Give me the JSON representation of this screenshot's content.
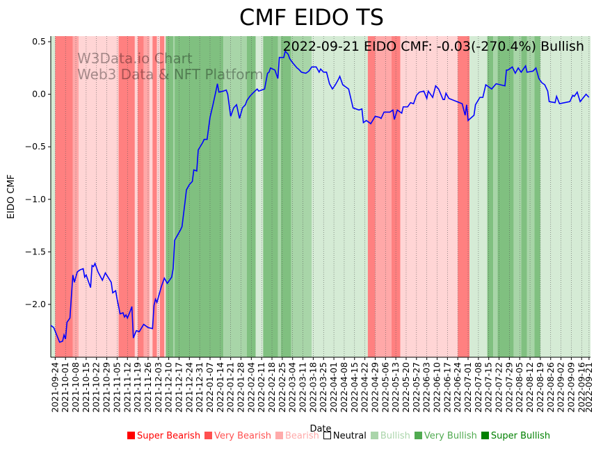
{
  "chart_data": {
    "type": "line",
    "title": "CMF EIDO TS",
    "annotation": "2022-09-21 EIDO CMF: -0.03(-270.4%) Bullish",
    "watermark": [
      "W3Data.io Chart",
      "Web3 Data & NFT Platform"
    ],
    "xlabel": "Date",
    "ylabel": "EIDO CMF",
    "start_date": "2021-09-24",
    "xlim_days": [
      -3,
      363
    ],
    "ylim": [
      -2.503,
      0.553
    ],
    "yticks": [
      0.5,
      0.0,
      -0.5,
      -1.0,
      -1.5,
      -2.0
    ],
    "ytick_labels": [
      "0.5",
      "0.0",
      "−0.5",
      "−1.0",
      "−1.5",
      "−2.0"
    ],
    "xtick_labels": [
      "2021-09-24",
      "2021-10-01",
      "2021-10-08",
      "2021-10-15",
      "2021-10-22",
      "2021-10-29",
      "2021-11-05",
      "2021-11-12",
      "2021-11-19",
      "2021-11-26",
      "2021-12-03",
      "2021-12-10",
      "2021-12-17",
      "2021-12-24",
      "2021-12-31",
      "2022-01-07",
      "2022-01-14",
      "2022-01-21",
      "2022-01-28",
      "2022-02-04",
      "2022-02-11",
      "2022-02-18",
      "2022-02-25",
      "2022-03-04",
      "2022-03-11",
      "2022-03-18",
      "2022-03-25",
      "2022-04-01",
      "2022-04-08",
      "2022-04-15",
      "2022-04-22",
      "2022-04-29",
      "2022-05-06",
      "2022-05-13",
      "2022-05-20",
      "2022-05-27",
      "2022-06-03",
      "2022-06-10",
      "2022-06-17",
      "2022-06-24",
      "2022-07-01",
      "2022-07-08",
      "2022-07-15",
      "2022-07-22",
      "2022-07-29",
      "2022-08-05",
      "2022-08-12",
      "2022-08-19",
      "2022-08-26",
      "2022-09-02",
      "2022-09-09",
      "2022-09-16",
      "2022-09-21"
    ],
    "xtick_days_note": "weekly from day 0, last tick at day 362",
    "series": [
      {
        "name": "EIDO CMF",
        "color": "#0000ff",
        "x_days": [
          -3,
          -1,
          3,
          5,
          6,
          7,
          8,
          10,
          11,
          12,
          13,
          15,
          17,
          19,
          20,
          21,
          24,
          25,
          26,
          27,
          29,
          32,
          34,
          38,
          39,
          41,
          42,
          44,
          46,
          47,
          48,
          49,
          51,
          52,
          53,
          55,
          57,
          60,
          63,
          66,
          67,
          68,
          69,
          72,
          74,
          76,
          79,
          80,
          81,
          83,
          85,
          86,
          88,
          89,
          91,
          93,
          94,
          96,
          97,
          100,
          101,
          103,
          105,
          107,
          109,
          110,
          111,
          114,
          116,
          117,
          119,
          121,
          123,
          125,
          127,
          129,
          130,
          132,
          134,
          137,
          138,
          142,
          144,
          145,
          146,
          149,
          151,
          152,
          155,
          156,
          158,
          159,
          161,
          164,
          165,
          167,
          170,
          172,
          174,
          177,
          179,
          180,
          182,
          184,
          186,
          188,
          190,
          192,
          193,
          195,
          197,
          199,
          202,
          206,
          208,
          209,
          211,
          214,
          217,
          220,
          221,
          223,
          227,
          229,
          230,
          232,
          235,
          236,
          239,
          241,
          243,
          245,
          247,
          250,
          252,
          253,
          256,
          258,
          260,
          263,
          264,
          265,
          267,
          276,
          278,
          279,
          280,
          284,
          285,
          288,
          290,
          292,
          296,
          299,
          302,
          305,
          306,
          307,
          310,
          312,
          314,
          316,
          319,
          320,
          324,
          326,
          328,
          330,
          332,
          334,
          335,
          339,
          340,
          342,
          349,
          351,
          352,
          354,
          356,
          360,
          362
        ],
        "values": [
          -2.2,
          -2.22,
          -2.36,
          -2.35,
          -2.29,
          -2.33,
          -2.17,
          -2.13,
          -1.92,
          -1.72,
          -1.79,
          -1.69,
          -1.67,
          -1.66,
          -1.74,
          -1.72,
          -1.84,
          -1.63,
          -1.64,
          -1.61,
          -1.69,
          -1.77,
          -1.7,
          -1.79,
          -1.89,
          -1.87,
          -1.95,
          -2.09,
          -2.08,
          -2.12,
          -2.1,
          -2.13,
          -2.06,
          -2.02,
          -2.32,
          -2.25,
          -2.26,
          -2.19,
          -2.22,
          -2.23,
          -2.01,
          -1.95,
          -1.98,
          -1.83,
          -1.75,
          -1.8,
          -1.74,
          -1.66,
          -1.39,
          -1.34,
          -1.29,
          -1.26,
          -1.03,
          -0.91,
          -0.86,
          -0.83,
          -0.72,
          -0.73,
          -0.53,
          -0.46,
          -0.43,
          -0.43,
          -0.22,
          -0.1,
          0.03,
          0.1,
          0.02,
          0.03,
          0.04,
          0.0,
          -0.21,
          -0.13,
          -0.1,
          -0.23,
          -0.13,
          -0.1,
          -0.06,
          -0.02,
          0.01,
          0.05,
          0.03,
          0.05,
          0.2,
          0.21,
          0.25,
          0.23,
          0.15,
          0.35,
          0.35,
          0.41,
          0.38,
          0.34,
          0.3,
          0.25,
          0.24,
          0.21,
          0.2,
          0.22,
          0.26,
          0.26,
          0.21,
          0.24,
          0.21,
          0.21,
          0.1,
          0.05,
          0.09,
          0.14,
          0.17,
          0.09,
          0.07,
          0.05,
          -0.13,
          -0.15,
          -0.14,
          -0.27,
          -0.25,
          -0.28,
          -0.21,
          -0.22,
          -0.23,
          -0.17,
          -0.17,
          -0.15,
          -0.24,
          -0.15,
          -0.18,
          -0.12,
          -0.12,
          -0.08,
          -0.09,
          -0.01,
          0.02,
          0.03,
          -0.04,
          0.03,
          -0.03,
          0.08,
          0.05,
          -0.05,
          -0.05,
          0.01,
          -0.04,
          -0.09,
          -0.2,
          -0.1,
          -0.25,
          -0.2,
          -0.1,
          -0.03,
          -0.03,
          0.09,
          0.05,
          0.1,
          0.09,
          0.08,
          0.23,
          0.23,
          0.26,
          0.2,
          0.25,
          0.21,
          0.27,
          0.21,
          0.22,
          0.25,
          0.15,
          0.11,
          0.09,
          0.03,
          -0.07,
          -0.08,
          -0.02,
          -0.09,
          -0.07,
          -0.01,
          -0.02,
          0.02,
          -0.07,
          0.0,
          -0.03
        ]
      }
    ],
    "bands": [
      [
        -3,
        0,
        "bullish"
      ],
      [
        0,
        12,
        "super_bearish"
      ],
      [
        12,
        16,
        "very_bearish"
      ],
      [
        16,
        43,
        "bearish"
      ],
      [
        43,
        54,
        "super_bearish"
      ],
      [
        54,
        56,
        "bearish"
      ],
      [
        56,
        60,
        "super_bearish"
      ],
      [
        60,
        64,
        "very_bearish"
      ],
      [
        64,
        66,
        "bearish"
      ],
      [
        66,
        69,
        "super_bearish"
      ],
      [
        69,
        71,
        "bearish"
      ],
      [
        71,
        74,
        "super_bearish"
      ],
      [
        74,
        75,
        "bearish"
      ],
      [
        75,
        80,
        "super_bullish"
      ],
      [
        80,
        81,
        "very_bullish"
      ],
      [
        81,
        114,
        "super_bullish"
      ],
      [
        114,
        130,
        "very_bullish"
      ],
      [
        130,
        136,
        "super_bullish"
      ],
      [
        136,
        141,
        "bullish"
      ],
      [
        141,
        151,
        "super_bullish"
      ],
      [
        151,
        153,
        "very_bullish"
      ],
      [
        153,
        160,
        "super_bullish"
      ],
      [
        160,
        174,
        "very_bullish"
      ],
      [
        174,
        212,
        "bullish"
      ],
      [
        212,
        217,
        "super_bearish"
      ],
      [
        217,
        228,
        "very_bearish"
      ],
      [
        228,
        234,
        "super_bearish"
      ],
      [
        234,
        273,
        "bearish"
      ],
      [
        273,
        281,
        "super_bearish"
      ],
      [
        281,
        293,
        "bullish"
      ],
      [
        293,
        297,
        "super_bullish"
      ],
      [
        297,
        300,
        "very_bullish"
      ],
      [
        300,
        311,
        "super_bullish"
      ],
      [
        311,
        316,
        "very_bullish"
      ],
      [
        316,
        320,
        "super_bullish"
      ],
      [
        320,
        325,
        "very_bullish"
      ],
      [
        325,
        329,
        "super_bullish"
      ],
      [
        329,
        363,
        "bullish"
      ]
    ],
    "band_colors": {
      "super_bearish": "#ff8080",
      "very_bearish": "#ffa8a8",
      "bearish": "#ffd5d5",
      "bullish": "#d5ebd5",
      "very_bullish": "#a8d5a8",
      "super_bullish": "#80c080"
    },
    "legend": [
      {
        "label": "Super Bearish",
        "color": "#ff0000",
        "text_color": "#ff0000"
      },
      {
        "label": "Very Bearish",
        "color": "#ff5050",
        "text_color": "#ff5050"
      },
      {
        "label": "Bearish",
        "color": "#ffaaaa",
        "text_color": "#ffaaaa"
      },
      {
        "label": "Neutral",
        "color": "none",
        "text_color": "#000000"
      },
      {
        "label": "Bullish",
        "color": "#aad5aa",
        "text_color": "#aad5aa"
      },
      {
        "label": "Very Bullish",
        "color": "#50aa50",
        "text_color": "#50aa50"
      },
      {
        "label": "Super Bullish",
        "color": "#008000",
        "text_color": "#008000"
      }
    ],
    "legend_position": "bottom-right",
    "grid": "vertical dotted"
  }
}
